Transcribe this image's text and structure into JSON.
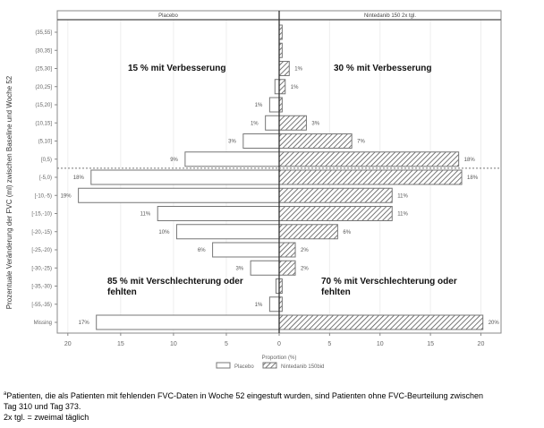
{
  "chart_data": {
    "type": "bar",
    "orientation": "horizontal-butterfly",
    "ylabel": "Prozentuale Veränderung der FVC (ml) zwischen Baseline und Woche 52",
    "xlabel": "Proportion (%)",
    "categories": [
      "(35,55]",
      "(30,35]",
      "(25,30]",
      "(20,25]",
      "(15,20]",
      "(10,15]",
      "(5,10]",
      "[0,5)",
      "[-5,0)",
      "[-10,-5)",
      "[-15,-10)",
      "[-20,-15)",
      "[-25,-20)",
      "[-30,-25)",
      "[-35,-30)",
      "[-55,-35)",
      "Missing"
    ],
    "series": [
      {
        "name": "Placebo",
        "panel_title": "Placebo",
        "legend": "Placebo",
        "pattern": "empty",
        "values": [
          0,
          0,
          0,
          0.4,
          0.9,
          1.3,
          3.4,
          8.9,
          17.8,
          19.0,
          11.5,
          9.7,
          6.3,
          2.7,
          0.3,
          0.9,
          17.3
        ],
        "labels": [
          "",
          "",
          "",
          "",
          "1%",
          "1%",
          "3%",
          "9%",
          "18%",
          "19%",
          "11%",
          "10%",
          "6%",
          "3%",
          "",
          "1%",
          "17%"
        ]
      },
      {
        "name": "Nintedanib 150 2x tgl.",
        "panel_title": "Nintedanib 150 2x tgl.",
        "legend": "Nintedanib 150bid",
        "pattern": "hatched",
        "values": [
          0.3,
          0.3,
          1.0,
          0.6,
          0.3,
          2.7,
          7.2,
          17.8,
          18.1,
          11.2,
          11.2,
          5.8,
          1.6,
          1.6,
          0.3,
          0.3,
          20.2
        ],
        "labels": [
          "",
          "",
          "1%",
          "1%",
          "",
          "3%",
          "7%",
          "18%",
          "18%",
          "11%",
          "11%",
          "6%",
          "2%",
          "2%",
          "",
          "",
          "20%"
        ]
      }
    ],
    "xticks_left": [
      20,
      15,
      10,
      5,
      0
    ],
    "xticks_right": [
      0,
      5,
      10,
      15,
      20
    ],
    "xlim_left": [
      21,
      0
    ],
    "xlim_right": [
      0,
      22
    ],
    "reference_line_between": [
      "[0,5)",
      "[-5,0)"
    ],
    "annotations": [
      {
        "panel": "Placebo",
        "text": [
          "15 % mit Verbesserung"
        ]
      },
      {
        "panel": "Nintedanib 150 2x tgl.",
        "text": [
          "30 % mit Verbesserung"
        ]
      },
      {
        "panel": "Placebo",
        "text": [
          "85 % mit Verschlechterung oder",
          "fehlten"
        ]
      },
      {
        "panel": "Nintedanib 150 2x tgl.",
        "text": [
          "70 % mit Verschlechterung oder",
          "fehlten"
        ]
      }
    ],
    "legend_position": "bottom",
    "grid": true
  },
  "footnote": {
    "marker": "a",
    "line1": "Patienten, die als Patienten mit fehlenden FVC-Daten in Woche 52 eingestuft wurden, sind Patienten ohne FVC-Beurteilung zwischen",
    "line2": "Tag 310 und Tag 373.",
    "line3": "2x tgl. = zweimal täglich"
  }
}
